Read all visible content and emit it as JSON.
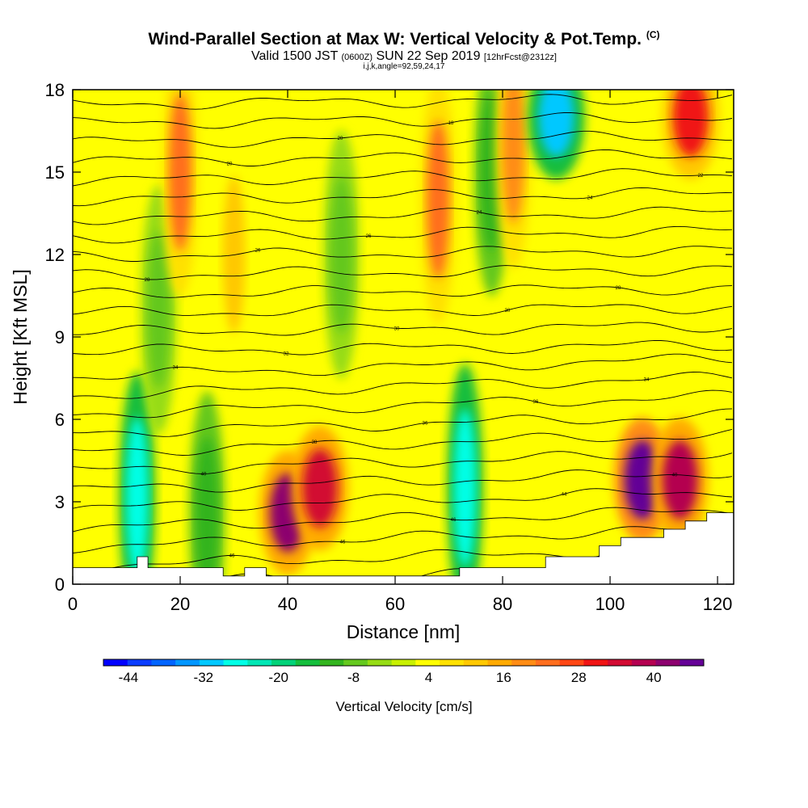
{
  "title": {
    "main": "Wind-Parallel Section at Max W: Vertical Velocity & Pot.Temp.",
    "copyright": "(C)",
    "valid_prefix": "Valid 1500 JST",
    "utc": "(0600Z)",
    "valid_date": "SUN 22 Sep 2019",
    "forecast": "[12hrFcst@2312z]",
    "section_params": "i,j,k,angle=92,59,24,17"
  },
  "chart_data": {
    "type": "heatmap",
    "xlabel": "Distance [nm]",
    "ylabel": "Height [Kft MSL]",
    "xlim": [
      0,
      123
    ],
    "ylim": [
      0,
      18
    ],
    "x_ticks": [
      "0",
      "20",
      "40",
      "60",
      "80",
      "100",
      "120"
    ],
    "y_ticks": [
      "0",
      "3",
      "6",
      "9",
      "12",
      "15",
      "18"
    ],
    "colorbar": {
      "label": "Vertical Velocity [cm/s]",
      "min": -48,
      "max": 48,
      "step": 4,
      "tick_labels": [
        "-44",
        "-32",
        "-20",
        "-8",
        "4",
        "16",
        "28",
        "40"
      ],
      "colors": [
        "#0000ff",
        "#0a3cff",
        "#0064ff",
        "#0096ff",
        "#00c8ff",
        "#00ffe6",
        "#00e6b4",
        "#00d278",
        "#14be3c",
        "#32b41e",
        "#64c81e",
        "#96dc14",
        "#c8f000",
        "#ffff00",
        "#ffe100",
        "#ffc800",
        "#ffaa00",
        "#ff8c14",
        "#ff6e1e",
        "#ff4614",
        "#f01414",
        "#d20a32",
        "#b40050",
        "#8c006e",
        "#640096"
      ]
    },
    "cells": [
      {
        "x": 12,
        "y": 3.2,
        "w": -28
      },
      {
        "x": 16,
        "y": 10,
        "w": -8
      },
      {
        "x": 20,
        "y": 15,
        "w": 24
      },
      {
        "x": 25,
        "y": 2.5,
        "w": -12
      },
      {
        "x": 30,
        "y": 12,
        "w": 12
      },
      {
        "x": 40,
        "y": 2.6,
        "w": 44
      },
      {
        "x": 46,
        "y": 3.5,
        "w": 36
      },
      {
        "x": 50,
        "y": 12,
        "w": -8
      },
      {
        "x": 68,
        "y": 14,
        "w": 24
      },
      {
        "x": 73,
        "y": 3.5,
        "w": -28
      },
      {
        "x": 78,
        "y": 15,
        "w": -12
      },
      {
        "x": 82,
        "y": 16,
        "w": 20
      },
      {
        "x": 90,
        "y": 17,
        "w": -32
      },
      {
        "x": 106,
        "y": 3.8,
        "w": 48
      },
      {
        "x": 113,
        "y": 3.8,
        "w": 40
      },
      {
        "x": 115,
        "y": 17,
        "w": 32
      }
    ],
    "theta_contour_labels": [
      "50",
      "46",
      "46",
      "46",
      "44",
      "40",
      "40",
      "38",
      "36",
      "36",
      "34",
      "34",
      "32",
      "30",
      "30",
      "28",
      "28",
      "26",
      "26",
      "24",
      "24",
      "22",
      "20",
      "20",
      "18"
    ],
    "terrain_polyline": [
      [
        0,
        0.6
      ],
      [
        12,
        0.6
      ],
      [
        12,
        1.0
      ],
      [
        14,
        1.0
      ],
      [
        14,
        0.6
      ],
      [
        28,
        0.6
      ],
      [
        28,
        0.3
      ],
      [
        32,
        0.3
      ],
      [
        32,
        0.6
      ],
      [
        36,
        0.6
      ],
      [
        36,
        0.3
      ],
      [
        72,
        0.3
      ],
      [
        72,
        0.6
      ],
      [
        88,
        0.6
      ],
      [
        88,
        1.0
      ],
      [
        98,
        1.0
      ],
      [
        98,
        1.4
      ],
      [
        102,
        1.4
      ],
      [
        102,
        1.7
      ],
      [
        110,
        1.7
      ],
      [
        110,
        2.0
      ],
      [
        114,
        2.0
      ],
      [
        114,
        2.3
      ],
      [
        118,
        2.3
      ],
      [
        118,
        2.6
      ],
      [
        123,
        2.6
      ]
    ]
  }
}
